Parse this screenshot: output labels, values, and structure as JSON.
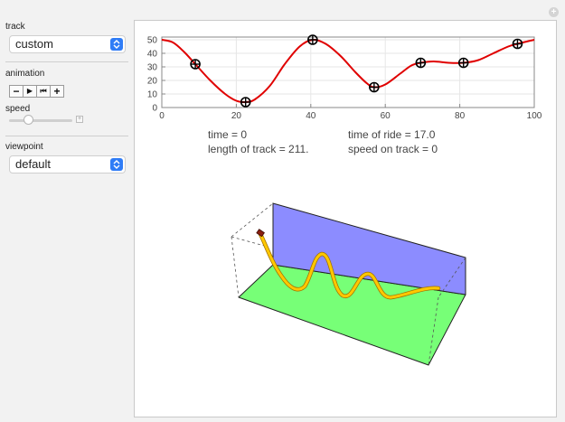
{
  "controls": {
    "track_label": "track",
    "track_value": "custom",
    "animation_label": "animation",
    "animation_buttons": [
      "−",
      "▶",
      "⏮",
      "+"
    ],
    "speed_label": "speed",
    "speed_fraction": 0.3,
    "viewpoint_label": "viewpoint",
    "viewpoint_value": "default"
  },
  "info": {
    "time": "time = 0",
    "length": "length of track = 211.",
    "time_of_ride": "time of ride = 17.0",
    "speed_on_track": "speed on track = 0"
  },
  "colors": {
    "curve": "#e00000",
    "track_3d": "#ffc800",
    "wall": "#8c8cff",
    "floor": "#77ff77",
    "accent": "#2f7cf6"
  },
  "chart_data": {
    "type": "line",
    "x_ticks": [
      0,
      20,
      40,
      60,
      80,
      100
    ],
    "y_ticks": [
      0,
      10,
      20,
      30,
      40,
      50
    ],
    "xlim": [
      0,
      100
    ],
    "ylim": [
      0,
      52
    ],
    "grid": true,
    "control_points": [
      {
        "x": 9,
        "y": 32
      },
      {
        "x": 22.5,
        "y": 4
      },
      {
        "x": 40.5,
        "y": 50
      },
      {
        "x": 57,
        "y": 15
      },
      {
        "x": 69.5,
        "y": 33
      },
      {
        "x": 81,
        "y": 33
      },
      {
        "x": 95.5,
        "y": 47
      }
    ],
    "curve": [
      [
        0,
        50
      ],
      [
        3,
        48
      ],
      [
        6,
        41
      ],
      [
        9,
        32
      ],
      [
        13,
        20
      ],
      [
        17,
        10
      ],
      [
        20,
        5
      ],
      [
        22.5,
        4
      ],
      [
        25,
        6
      ],
      [
        29,
        16
      ],
      [
        33,
        32
      ],
      [
        37,
        45
      ],
      [
        40.5,
        50
      ],
      [
        44,
        47
      ],
      [
        48,
        38
      ],
      [
        52,
        26
      ],
      [
        55,
        18
      ],
      [
        57,
        15
      ],
      [
        60,
        17
      ],
      [
        64,
        25
      ],
      [
        67,
        31
      ],
      [
        69.5,
        33
      ],
      [
        73,
        34
      ],
      [
        77,
        33
      ],
      [
        81,
        33
      ],
      [
        85,
        35
      ],
      [
        89,
        40
      ],
      [
        93,
        45
      ],
      [
        95.5,
        47
      ],
      [
        100,
        50
      ]
    ]
  }
}
